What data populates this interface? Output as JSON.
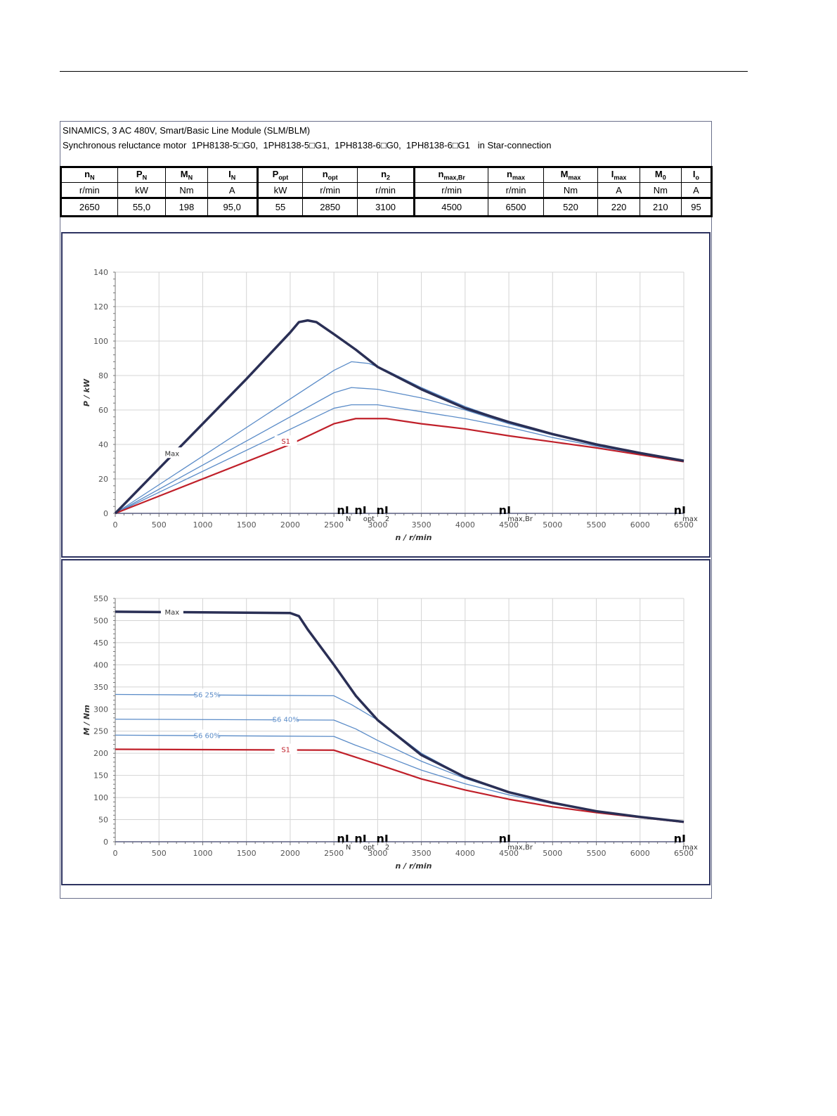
{
  "header": {
    "line1": "SINAMICS, 3 AC 480V, Smart/Basic Line Module (SLM/BLM)",
    "line2": "Synchronous reluctance motor  1PH8138-5□G0,  1PH8138-5□G1,  1PH8138-6□G0,  1PH8138-6□G1   in Star-connection"
  },
  "table": {
    "symbols": [
      [
        "n",
        "N"
      ],
      [
        "P",
        "N"
      ],
      [
        "M",
        "N"
      ],
      [
        "I",
        "N"
      ],
      [
        "P",
        "opt"
      ],
      [
        "n",
        "opt"
      ],
      [
        "n",
        "2"
      ],
      [
        "n",
        "max,Br"
      ],
      [
        "n",
        "max"
      ],
      [
        "M",
        "max"
      ],
      [
        "I",
        "max"
      ],
      [
        "M",
        "0"
      ],
      [
        "I",
        "o"
      ]
    ],
    "units": [
      "r/min",
      "kW",
      "Nm",
      "A",
      "kW",
      "r/min",
      "r/min",
      "r/min",
      "r/min",
      "Nm",
      "A",
      "Nm",
      "A"
    ],
    "values": [
      "2650",
      "55,0",
      "198",
      "95,0",
      "55",
      "2850",
      "3100",
      "4500",
      "6500",
      "520",
      "220",
      "210",
      "95"
    ]
  },
  "chart_data": [
    {
      "type": "line",
      "title": "",
      "xlabel": "n / r/min",
      "ylabel": "P / kW",
      "xlim": [
        0,
        6500
      ],
      "ylim": [
        0,
        140
      ],
      "xticks": [
        0,
        500,
        1000,
        1500,
        2000,
        2500,
        3000,
        3500,
        4000,
        4500,
        5000,
        5500,
        6000,
        6500
      ],
      "yticks": [
        0,
        20,
        40,
        60,
        80,
        100,
        120,
        140
      ],
      "grid": true,
      "series": [
        {
          "name": "S6 60%",
          "color": "#5b8cc8",
          "width": 1.3,
          "points": [
            [
              0,
              0
            ],
            [
              2500,
              61
            ],
            [
              2700,
              63
            ],
            [
              3000,
              63
            ],
            [
              3500,
              59
            ],
            [
              4000,
              55
            ],
            [
              4500,
              50
            ],
            [
              5000,
              44
            ],
            [
              5500,
              39
            ],
            [
              6000,
              34.5
            ],
            [
              6500,
              30.5
            ]
          ]
        },
        {
          "name": "S6 40%",
          "color": "#5b8cc8",
          "width": 1.3,
          "points": [
            [
              0,
              0
            ],
            [
              2500,
              70
            ],
            [
              2700,
              73
            ],
            [
              3000,
              72
            ],
            [
              3500,
              67
            ],
            [
              4000,
              60
            ],
            [
              4500,
              52
            ],
            [
              5000,
              45.5
            ],
            [
              5500,
              40
            ],
            [
              6000,
              35
            ],
            [
              6500,
              30.5
            ]
          ]
        },
        {
          "name": "S6 25%",
          "color": "#5b8cc8",
          "width": 1.3,
          "points": [
            [
              0,
              0
            ],
            [
              2500,
              83
            ],
            [
              2700,
              88
            ],
            [
              2900,
              87
            ],
            [
              3100,
              83
            ],
            [
              3500,
              73
            ],
            [
              4000,
              62
            ],
            [
              4500,
              53
            ],
            [
              5000,
              46
            ],
            [
              5500,
              40
            ],
            [
              6000,
              35
            ],
            [
              6500,
              30.5
            ]
          ]
        },
        {
          "name": "S1",
          "color": "#c0202a",
          "width": 2.2,
          "label": "S1",
          "label_at": [
            1950,
            42
          ],
          "points": [
            [
              0,
              0
            ],
            [
              500,
              10
            ],
            [
              2000,
              40
            ],
            [
              2500,
              52
            ],
            [
              2750,
              55
            ],
            [
              3100,
              55
            ],
            [
              3500,
              52
            ],
            [
              4000,
              49
            ],
            [
              4500,
              45
            ],
            [
              5000,
              41.5
            ],
            [
              5500,
              38
            ],
            [
              6000,
              34
            ],
            [
              6500,
              30
            ]
          ]
        },
        {
          "name": "Max",
          "color": "#2a2f55",
          "width": 3.5,
          "label": "Max",
          "label_at": [
            650,
            35
          ],
          "points": [
            [
              0,
              0
            ],
            [
              500,
              26
            ],
            [
              1000,
              52
            ],
            [
              1500,
              78
            ],
            [
              2000,
              105
            ],
            [
              2100,
              111
            ],
            [
              2200,
              112
            ],
            [
              2300,
              111
            ],
            [
              2500,
              104
            ],
            [
              2750,
              95
            ],
            [
              3000,
              85
            ],
            [
              3500,
              72
            ],
            [
              4000,
              61
            ],
            [
              4500,
              53
            ],
            [
              5000,
              46
            ],
            [
              5500,
              40
            ],
            [
              6000,
              35
            ],
            [
              6500,
              30.5
            ]
          ]
        }
      ],
      "markers": [
        {
          "x": 2650,
          "label": "n",
          "sub": "N"
        },
        {
          "x": 2850,
          "label": "n",
          "sub": "opt"
        },
        {
          "x": 3100,
          "label": "n",
          "sub": "2"
        },
        {
          "x": 4500,
          "label": "n",
          "sub": "max,Br"
        },
        {
          "x": 6500,
          "label": "n",
          "sub": "max"
        }
      ]
    },
    {
      "type": "line",
      "title": "",
      "xlabel": "n / r/min",
      "ylabel": "M / Nm",
      "xlim": [
        0,
        6500
      ],
      "ylim": [
        0,
        550
      ],
      "xticks": [
        0,
        500,
        1000,
        1500,
        2000,
        2500,
        3000,
        3500,
        4000,
        4500,
        5000,
        5500,
        6000,
        6500
      ],
      "yticks": [
        0,
        50,
        100,
        150,
        200,
        250,
        300,
        350,
        400,
        450,
        500,
        550
      ],
      "grid": true,
      "series": [
        {
          "name": "S6 60%",
          "color": "#5b8cc8",
          "width": 1.3,
          "label": "S6 60%",
          "label_at": [
            1050,
            241
          ],
          "points": [
            [
              0,
              241
            ],
            [
              2500,
              238
            ],
            [
              2750,
              218
            ],
            [
              3000,
              200
            ],
            [
              3500,
              162
            ],
            [
              4000,
              131
            ],
            [
              4500,
              106
            ],
            [
              5000,
              86
            ],
            [
              5500,
              70
            ],
            [
              6000,
              57
            ],
            [
              6500,
              45
            ]
          ]
        },
        {
          "name": "S6 40%",
          "color": "#5b8cc8",
          "width": 1.3,
          "label": "S6 40%",
          "label_at": [
            1950,
            277
          ],
          "points": [
            [
              0,
              277
            ],
            [
              2500,
              275
            ],
            [
              2750,
              255
            ],
            [
              3000,
              229
            ],
            [
              3500,
              182
            ],
            [
              4000,
              143
            ],
            [
              4500,
              111
            ],
            [
              5000,
              88
            ],
            [
              5500,
              70
            ],
            [
              6000,
              56
            ],
            [
              6500,
              45
            ]
          ]
        },
        {
          "name": "S6 25%",
          "color": "#5b8cc8",
          "width": 1.3,
          "label": "S6 25%",
          "label_at": [
            1050,
            333
          ],
          "points": [
            [
              0,
              333
            ],
            [
              2500,
              330
            ],
            [
              2700,
              310
            ],
            [
              3000,
              275
            ],
            [
              3500,
              200
            ],
            [
              4000,
              147
            ],
            [
              4500,
              112
            ],
            [
              5000,
              88
            ],
            [
              5500,
              69
            ],
            [
              6000,
              56
            ],
            [
              6500,
              45
            ]
          ]
        },
        {
          "name": "S1",
          "color": "#c0202a",
          "width": 2.2,
          "label": "S1",
          "label_at": [
            1950,
            209
          ],
          "points": [
            [
              0,
              209
            ],
            [
              2500,
              207
            ],
            [
              2750,
              191
            ],
            [
              3000,
              175
            ],
            [
              3500,
              142
            ],
            [
              4000,
              117
            ],
            [
              4500,
              96
            ],
            [
              5000,
              79
            ],
            [
              5500,
              66
            ],
            [
              6000,
              55
            ],
            [
              6500,
              44
            ]
          ]
        },
        {
          "name": "Max",
          "color": "#2a2f55",
          "width": 3.5,
          "label": "Max",
          "label_at": [
            650,
            520
          ],
          "points": [
            [
              0,
              520
            ],
            [
              2000,
              517
            ],
            [
              2100,
              510
            ],
            [
              2200,
              480
            ],
            [
              2500,
              400
            ],
            [
              2750,
              330
            ],
            [
              3000,
              275
            ],
            [
              3500,
              196
            ],
            [
              4000,
              146
            ],
            [
              4500,
              112
            ],
            [
              5000,
              88
            ],
            [
              5500,
              69
            ],
            [
              6000,
              56
            ],
            [
              6500,
              45
            ]
          ]
        }
      ],
      "markers": [
        {
          "x": 2650,
          "label": "n",
          "sub": "N"
        },
        {
          "x": 2850,
          "label": "n",
          "sub": "opt"
        },
        {
          "x": 3100,
          "label": "n",
          "sub": "2"
        },
        {
          "x": 4500,
          "label": "n",
          "sub": "max,Br"
        },
        {
          "x": 6500,
          "label": "n",
          "sub": "max"
        }
      ]
    }
  ]
}
